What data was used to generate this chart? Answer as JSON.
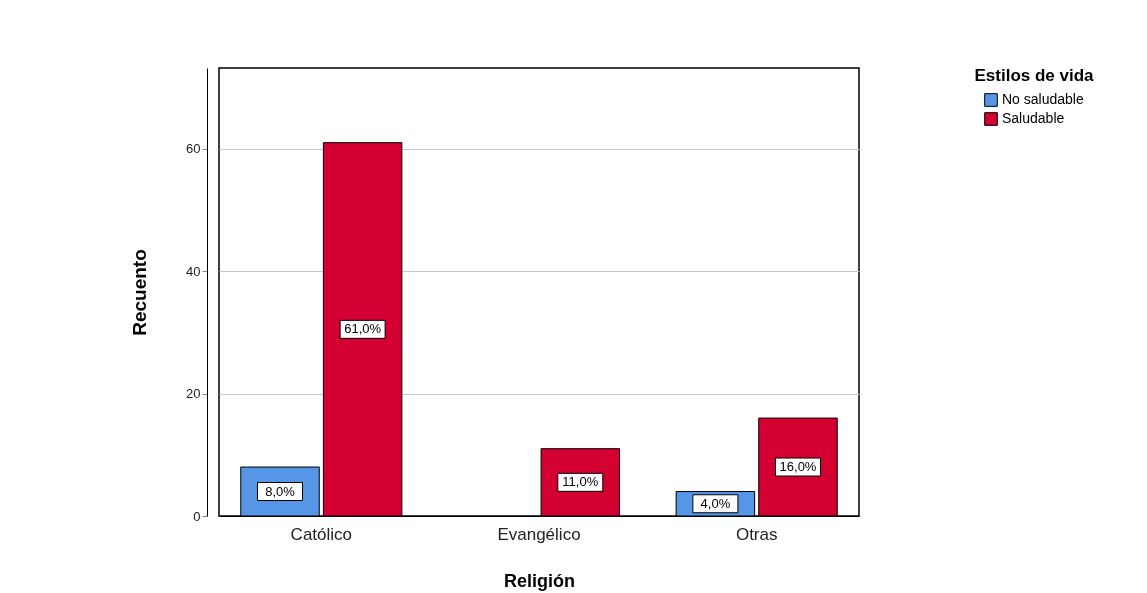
{
  "chart_data": {
    "type": "bar",
    "xlabel": "Religión",
    "ylabel": "Recuento",
    "legend_title": "Estilos de vida",
    "categories": [
      "Católico",
      "Evangélico",
      "Otras"
    ],
    "series": [
      {
        "name": "No saludable",
        "color": "#5596e6",
        "values": [
          8,
          null,
          4
        ],
        "value_labels": [
          "8,0%",
          null,
          "4,0%"
        ]
      },
      {
        "name": "Saludable",
        "color": "#d50032",
        "values": [
          61,
          11,
          16
        ],
        "value_labels": [
          "61,0%",
          "11,0%",
          "16,0%"
        ]
      }
    ],
    "ylim": [
      0,
      73.2
    ],
    "yticks": [
      0,
      20,
      40,
      60
    ],
    "grid": "y",
    "legend": "top right"
  }
}
